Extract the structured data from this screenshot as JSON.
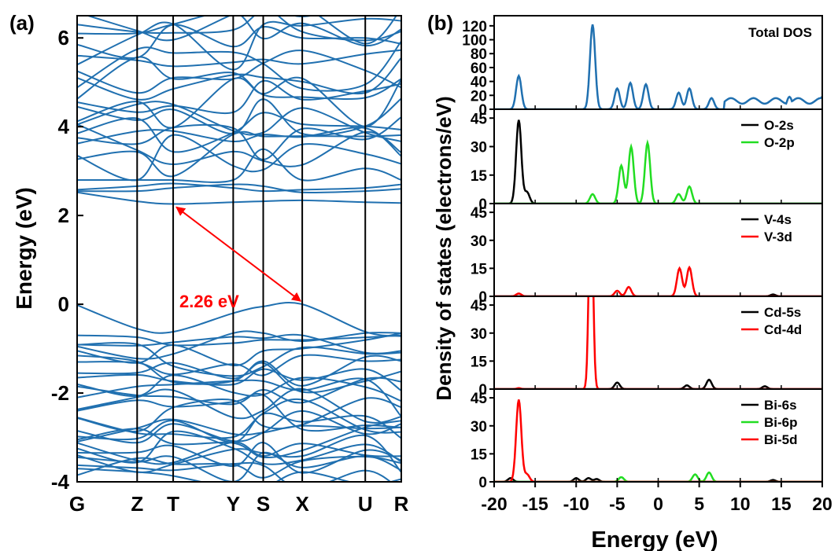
{
  "panel_a": {
    "label": "(a)",
    "ylabel": "Energy (eV)",
    "gap_label": "2.26 eV"
  },
  "panel_b": {
    "label": "(b)",
    "ylabel": "Density of states (electrons/eV)",
    "xlabel": "Energy (eV)"
  },
  "colors": {
    "band": "#2070b0",
    "axis": "#000000",
    "gap_arrow": "#ff0000",
    "black_curve": "#000000",
    "green_curve": "#22dd22",
    "red_curve": "#ff0000",
    "blue_curve": "#2070b0"
  },
  "chart_data": [
    {
      "type": "line",
      "title": "",
      "xlabel": "",
      "ylabel": "Energy (eV)",
      "ylim": [
        -4,
        6.5
      ],
      "yticks": [
        -4,
        -2,
        0,
        2,
        4,
        6
      ],
      "kpoints": [
        "G",
        "Z",
        "T",
        "Y",
        "S",
        "X",
        "U",
        "R"
      ],
      "kpoint_positions": [
        0,
        1.0,
        1.6,
        2.6,
        3.1,
        3.75,
        4.8,
        5.4
      ],
      "band_gap_eV": 2.26,
      "vbm_kpoint": "X",
      "cbm_kpoint": "T",
      "conduction_band_bottoms_at_G": [
        2.52,
        2.58,
        3.35,
        3.62,
        3.75,
        3.85,
        4.05,
        4.55,
        5.1,
        5.25,
        5.6,
        5.85,
        6.1,
        6.3
      ],
      "valence_band_tops_at_G": [
        -0.02,
        -0.95,
        -1.05,
        -1.3,
        -1.55,
        -1.8,
        -2.1,
        -2.4,
        -2.55,
        -2.85,
        -3.05,
        -3.25,
        -3.4,
        -3.7,
        -3.85
      ]
    },
    {
      "type": "line",
      "title": "",
      "xlabel": "Energy (eV)",
      "ylabel": "Density of states (electrons/eV)",
      "xlim": [
        -20,
        20
      ],
      "xticks": [
        -20,
        -15,
        -10,
        -5,
        0,
        5,
        10,
        15,
        20
      ],
      "panels": [
        {
          "label": "Total DOS",
          "ylim": [
            0,
            130
          ],
          "yticks": [
            0,
            20,
            40,
            60,
            80,
            100,
            120
          ],
          "series": [
            {
              "color": "blue",
              "peaks": [
                [
                  -17.0,
                  48
                ],
                [
                  -8.0,
                  122
                ],
                [
                  -5.0,
                  30
                ],
                [
                  -3.4,
                  38
                ],
                [
                  -1.5,
                  36
                ],
                [
                  2.5,
                  24
                ],
                [
                  3.8,
                  30
                ],
                [
                  6.5,
                  16
                ],
                [
                  9.0,
                  15
                ],
                [
                  12.0,
                  14
                ],
                [
                  16.0,
                  18
                ],
                [
                  20.0,
                  18
                ]
              ]
            }
          ]
        },
        {
          "label": "",
          "ylim": [
            0,
            48
          ],
          "yticks": [
            0,
            15,
            30,
            45
          ],
          "series": [
            {
              "name": "O-2s",
              "color": "black",
              "peaks": [
                [
                  -17.0,
                  44
                ],
                [
                  -16.0,
                  6
                ]
              ]
            },
            {
              "name": "O-2p",
              "color": "green",
              "peaks": [
                [
                  -8.0,
                  5
                ],
                [
                  -4.5,
                  20
                ],
                [
                  -3.3,
                  30
                ],
                [
                  -1.3,
                  32
                ],
                [
                  2.5,
                  5
                ],
                [
                  3.8,
                  9
                ]
              ]
            }
          ]
        },
        {
          "label": "",
          "ylim": [
            0,
            48
          ],
          "yticks": [
            0,
            15,
            30,
            45
          ],
          "series": [
            {
              "name": "V-4s",
              "color": "black",
              "peaks": [
                [
                  14.0,
                  1
                ]
              ]
            },
            {
              "name": "V-3d",
              "color": "red",
              "peaks": [
                [
                  -17.0,
                  1.5
                ],
                [
                  -5.0,
                  3
                ],
                [
                  -3.6,
                  5
                ],
                [
                  2.6,
                  15
                ],
                [
                  3.8,
                  15.5
                ]
              ]
            }
          ]
        },
        {
          "label": "",
          "ylim": [
            0,
            48
          ],
          "yticks": [
            0,
            15,
            30,
            45
          ],
          "series": [
            {
              "name": "Cd-5s",
              "color": "black",
              "peaks": [
                [
                  -5.0,
                  3.5
                ],
                [
                  3.5,
                  2
                ],
                [
                  6.2,
                  5
                ],
                [
                  13.0,
                  1.5
                ]
              ]
            },
            {
              "name": "Cd-4d",
              "color": "red",
              "peaks": [
                [
                  -8.2,
                  110
                ],
                [
                  -17.0,
                  0.5
                ]
              ]
            }
          ]
        },
        {
          "label": "",
          "ylim": [
            0,
            48
          ],
          "yticks": [
            0,
            15,
            30,
            45
          ],
          "series": [
            {
              "name": "Bi-6s",
              "color": "black",
              "peaks": [
                [
                  -18.0,
                  2
                ],
                [
                  -10.0,
                  2
                ],
                [
                  -8.5,
                  2
                ],
                [
                  -7.5,
                  1.5
                ],
                [
                  14.0,
                  1
                ]
              ]
            },
            {
              "name": "Bi-6p",
              "color": "green",
              "peaks": [
                [
                  -4.5,
                  2.5
                ],
                [
                  4.5,
                  4
                ],
                [
                  6.2,
                  5
                ]
              ]
            },
            {
              "name": "Bi-5d",
              "color": "red",
              "peaks": [
                [
                  -17.0,
                  44
                ],
                [
                  -16.0,
                  4
                ]
              ]
            }
          ]
        }
      ]
    }
  ]
}
